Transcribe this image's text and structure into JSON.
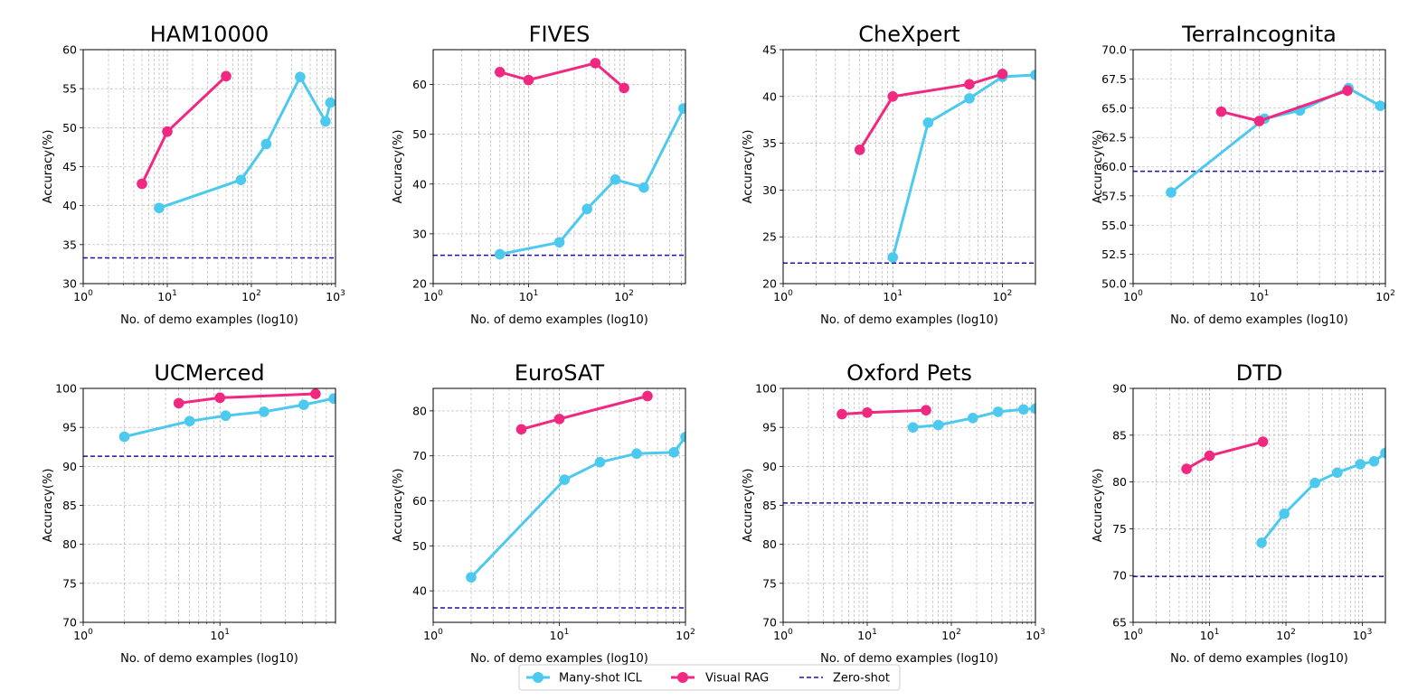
{
  "colors": {
    "icl": "#4cc9ee",
    "rag": "#f0287f",
    "zero": "#1f10a8"
  },
  "legend": {
    "icl_label": "Many-shot ICL",
    "rag_label": "Visual RAG",
    "zero_label": "Zero-shot"
  },
  "chart_data": [
    {
      "type": "line",
      "title": "HAM10000",
      "xscale": "log",
      "xlabel": "No. of demo examples (log10)",
      "ylabel": "Accuracy(%)",
      "xlim": [
        1,
        1000
      ],
      "ylim": [
        30,
        60
      ],
      "yticks": [
        30,
        35,
        40,
        45,
        50,
        55,
        60
      ],
      "ytick_labels": [
        "30",
        "35",
        "40",
        "45",
        "50",
        "55",
        "60"
      ],
      "xticks": [
        1,
        10,
        100,
        1000
      ],
      "grid": true,
      "series": [
        {
          "name": "Many-shot ICL",
          "x": [
            8,
            75,
            150,
            380,
            760,
            870
          ],
          "y": [
            39.7,
            43.3,
            47.9,
            56.5,
            50.8,
            53.2
          ]
        },
        {
          "name": "Visual RAG",
          "x": [
            5,
            10,
            50
          ],
          "y": [
            42.8,
            49.5,
            56.6
          ]
        }
      ],
      "zero_shot": 33.3
    },
    {
      "type": "line",
      "title": "FIVES",
      "xscale": "log",
      "xlabel": "No. of demo examples (log10)",
      "ylabel": "Accuracy(%)",
      "xlim": [
        1,
        440
      ],
      "ylim": [
        20,
        67
      ],
      "yticks": [
        20,
        30,
        40,
        50,
        60
      ],
      "ytick_labels": [
        "20",
        "30",
        "40",
        "50",
        "60"
      ],
      "xticks": [
        1,
        10,
        100
      ],
      "grid": true,
      "series": [
        {
          "name": "Many-shot ICL",
          "x": [
            5,
            21,
            41,
            81,
            161,
            420
          ],
          "y": [
            25.9,
            28.3,
            35.0,
            40.9,
            39.3,
            55.2
          ]
        },
        {
          "name": "Visual RAG",
          "x": [
            5,
            10,
            50,
            100
          ],
          "y": [
            62.5,
            60.9,
            64.3,
            59.3
          ]
        }
      ],
      "zero_shot": 25.7
    },
    {
      "type": "line",
      "title": "CheXpert",
      "xscale": "log",
      "xlabel": "No. of demo examples (log10)",
      "ylabel": "Accuracy(%)",
      "xlim": [
        1,
        200
      ],
      "ylim": [
        20,
        45
      ],
      "yticks": [
        20,
        25,
        30,
        35,
        40,
        45
      ],
      "ytick_labels": [
        "20",
        "25",
        "30",
        "35",
        "40",
        "45"
      ],
      "xticks": [
        1,
        10,
        100
      ],
      "grid": true,
      "series": [
        {
          "name": "Many-shot ICL",
          "x": [
            10,
            21,
            50,
            100,
            200
          ],
          "y": [
            22.8,
            37.2,
            39.8,
            42.1,
            42.3
          ]
        },
        {
          "name": "Visual RAG",
          "x": [
            5,
            10,
            50,
            100
          ],
          "y": [
            34.3,
            40.0,
            41.3,
            42.4
          ]
        }
      ],
      "zero_shot": 22.2
    },
    {
      "type": "line",
      "title": "TerraIncognita",
      "xscale": "log",
      "xlabel": "No. of demo examples (log10)",
      "ylabel": "Accuracy(%)",
      "xlim": [
        1,
        100
      ],
      "ylim": [
        50,
        70
      ],
      "yticks": [
        50,
        52.5,
        55,
        57.5,
        60,
        62.5,
        65,
        67.5,
        70
      ],
      "ytick_labels": [
        "50.0",
        "52.5",
        "55.0",
        "57.5",
        "60.0",
        "62.5",
        "65.0",
        "67.5",
        "70.0"
      ],
      "xticks": [
        1,
        10,
        100
      ],
      "grid": true,
      "series": [
        {
          "name": "Many-shot ICL",
          "x": [
            2,
            11,
            21,
            51,
            91
          ],
          "y": [
            57.8,
            64.1,
            64.8,
            66.7,
            65.2
          ]
        },
        {
          "name": "Visual RAG",
          "x": [
            5,
            10,
            50
          ],
          "y": [
            64.7,
            63.9,
            66.5
          ]
        }
      ],
      "zero_shot": 59.6
    },
    {
      "type": "line",
      "title": "UCMerced",
      "xscale": "log",
      "xlabel": "No. of demo examples (log10)",
      "ylabel": "Accuracy(%)",
      "xlim": [
        1,
        70
      ],
      "ylim": [
        70,
        100
      ],
      "yticks": [
        70,
        75,
        80,
        85,
        90,
        95,
        100
      ],
      "ytick_labels": [
        "70",
        "75",
        "80",
        "85",
        "90",
        "95",
        "100"
      ],
      "xticks": [
        1,
        10
      ],
      "grid": true,
      "series": [
        {
          "name": "Many-shot ICL",
          "x": [
            2,
            6,
            11,
            21,
            41,
            68
          ],
          "y": [
            93.8,
            95.8,
            96.5,
            97.0,
            97.9,
            98.7
          ]
        },
        {
          "name": "Visual RAG",
          "x": [
            5,
            10,
            50
          ],
          "y": [
            98.1,
            98.8,
            99.3
          ]
        }
      ],
      "zero_shot": 91.3
    },
    {
      "type": "line",
      "title": "EuroSAT",
      "xscale": "log",
      "xlabel": "No. of demo examples (log10)",
      "ylabel": "Accuracy(%)",
      "xlim": [
        1,
        100
      ],
      "ylim": [
        33,
        85
      ],
      "yticks": [
        40,
        50,
        60,
        70,
        80
      ],
      "ytick_labels": [
        "40",
        "50",
        "60",
        "70",
        "80"
      ],
      "xticks": [
        1,
        10,
        100
      ],
      "grid": true,
      "series": [
        {
          "name": "Many-shot ICL",
          "x": [
            2,
            11,
            21,
            41,
            81,
            100
          ],
          "y": [
            43.0,
            64.7,
            68.6,
            70.5,
            70.8,
            74.2
          ]
        },
        {
          "name": "Visual RAG",
          "x": [
            5,
            10,
            50
          ],
          "y": [
            75.9,
            78.2,
            83.3
          ]
        }
      ],
      "zero_shot": 36.2
    },
    {
      "type": "line",
      "title": "Oxford Pets",
      "xscale": "log",
      "xlabel": "No. of demo examples (log10)",
      "ylabel": "Accuracy(%)",
      "xlim": [
        1,
        1000
      ],
      "ylim": [
        70,
        100
      ],
      "yticks": [
        70,
        75,
        80,
        85,
        90,
        95,
        100
      ],
      "ytick_labels": [
        "70",
        "75",
        "80",
        "85",
        "90",
        "95",
        "100"
      ],
      "xticks": [
        1,
        10,
        100,
        1000
      ],
      "grid": true,
      "series": [
        {
          "name": "Many-shot ICL",
          "x": [
            35,
            70,
            180,
            360,
            720,
            1000
          ],
          "y": [
            95.0,
            95.3,
            96.2,
            97.0,
            97.3,
            97.4
          ]
        },
        {
          "name": "Visual RAG",
          "x": [
            5,
            10,
            50
          ],
          "y": [
            96.7,
            96.9,
            97.2
          ]
        }
      ],
      "zero_shot": 85.3
    },
    {
      "type": "line",
      "title": "DTD",
      "xscale": "log",
      "xlabel": "No. of demo examples (log10)",
      "ylabel": "Accuracy(%)",
      "xlim": [
        1,
        2000
      ],
      "ylim": [
        65,
        90
      ],
      "yticks": [
        65,
        70,
        75,
        80,
        85,
        90
      ],
      "ytick_labels": [
        "65",
        "70",
        "75",
        "80",
        "85",
        "90"
      ],
      "xticks": [
        1,
        10,
        100,
        1000
      ],
      "grid": true,
      "series": [
        {
          "name": "Many-shot ICL",
          "x": [
            48,
            95,
            240,
            470,
            940,
            1420,
            2000
          ],
          "y": [
            73.5,
            76.6,
            79.9,
            81.0,
            81.9,
            82.2,
            83.1
          ]
        },
        {
          "name": "Visual RAG",
          "x": [
            5,
            10,
            50
          ],
          "y": [
            81.4,
            82.8,
            84.3
          ]
        }
      ],
      "zero_shot": 69.9
    }
  ]
}
